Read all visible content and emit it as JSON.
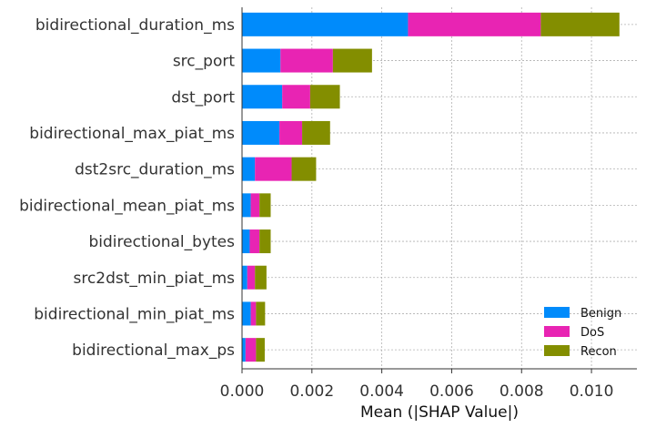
{
  "chart_data": {
    "type": "bar",
    "orientation": "horizontal",
    "stacked": true,
    "title": "",
    "xlabel": "Mean (|SHAP Value|)",
    "ylabel": "",
    "xlim": [
      0,
      0.0113
    ],
    "x_ticks": [
      "0.000",
      "0.002",
      "0.004",
      "0.006",
      "0.008",
      "0.010"
    ],
    "grid": true,
    "legend_position": "lower-right",
    "categories": [
      "bidirectional_duration_ms",
      "src_port",
      "dst_port",
      "bidirectional_max_piat_ms",
      "dst2src_duration_ms",
      "bidirectional_mean_piat_ms",
      "bidirectional_bytes",
      "src2dst_min_piat_ms",
      "bidirectional_min_piat_ms",
      "bidirectional_max_ps"
    ],
    "series": [
      {
        "name": "Benign",
        "color": "#008bfb",
        "values": [
          0.00475,
          0.0011,
          0.00115,
          0.00107,
          0.00037,
          0.00025,
          0.00022,
          0.00015,
          0.00025,
          0.0001
        ]
      },
      {
        "name": "DoS",
        "color": "#e824b3",
        "values": [
          0.0038,
          0.0015,
          0.0008,
          0.00065,
          0.00105,
          0.00025,
          0.00028,
          0.00022,
          0.00015,
          0.0003
        ]
      },
      {
        "name": "Recon",
        "color": "#838e00",
        "values": [
          0.00225,
          0.00112,
          0.00085,
          0.0008,
          0.0007,
          0.00032,
          0.00032,
          0.00033,
          0.00026,
          0.00025
        ]
      }
    ]
  }
}
